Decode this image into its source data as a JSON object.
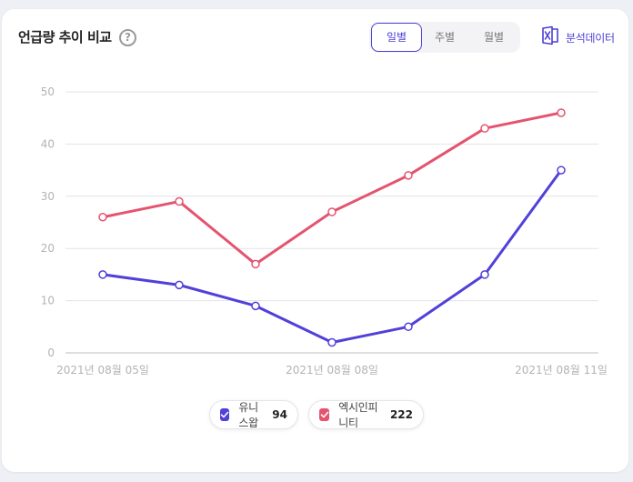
{
  "header": {
    "title": "언급량 추이 비교",
    "help_symbol": "?"
  },
  "period_tabs": [
    {
      "label": "일별",
      "active": true
    },
    {
      "label": "주별",
      "active": false
    },
    {
      "label": "월별",
      "active": false
    }
  ],
  "export": {
    "label": "분석데이터",
    "icon": "excel-icon"
  },
  "colors": {
    "accent": "#4b3fd6",
    "series1": "#5140d9",
    "series2": "#e4546f"
  },
  "chart_data": {
    "type": "line",
    "x": [
      "2021-08-05",
      "2021-08-06",
      "2021-08-07",
      "2021-08-08",
      "2021-08-09",
      "2021-08-10",
      "2021-08-11"
    ],
    "x_tick_labels": [
      {
        "index": 0,
        "label": "2021년 08월 05일"
      },
      {
        "index": 3,
        "label": "2021년 08월 08일"
      },
      {
        "index": 6,
        "label": "2021년 08월 11일"
      }
    ],
    "ylim": [
      0,
      50
    ],
    "yticks": [
      0,
      10,
      20,
      30,
      40,
      50
    ],
    "grid": true,
    "legend_position": "bottom-center",
    "series": [
      {
        "name": "유니스왑",
        "total": 94,
        "color": "#5140d9",
        "values": [
          15,
          13,
          9,
          2,
          5,
          15,
          35
        ]
      },
      {
        "name": "엑시인피니티",
        "total": 222,
        "color": "#e4546f",
        "values": [
          26,
          29,
          17,
          27,
          34,
          43,
          46
        ]
      }
    ]
  }
}
